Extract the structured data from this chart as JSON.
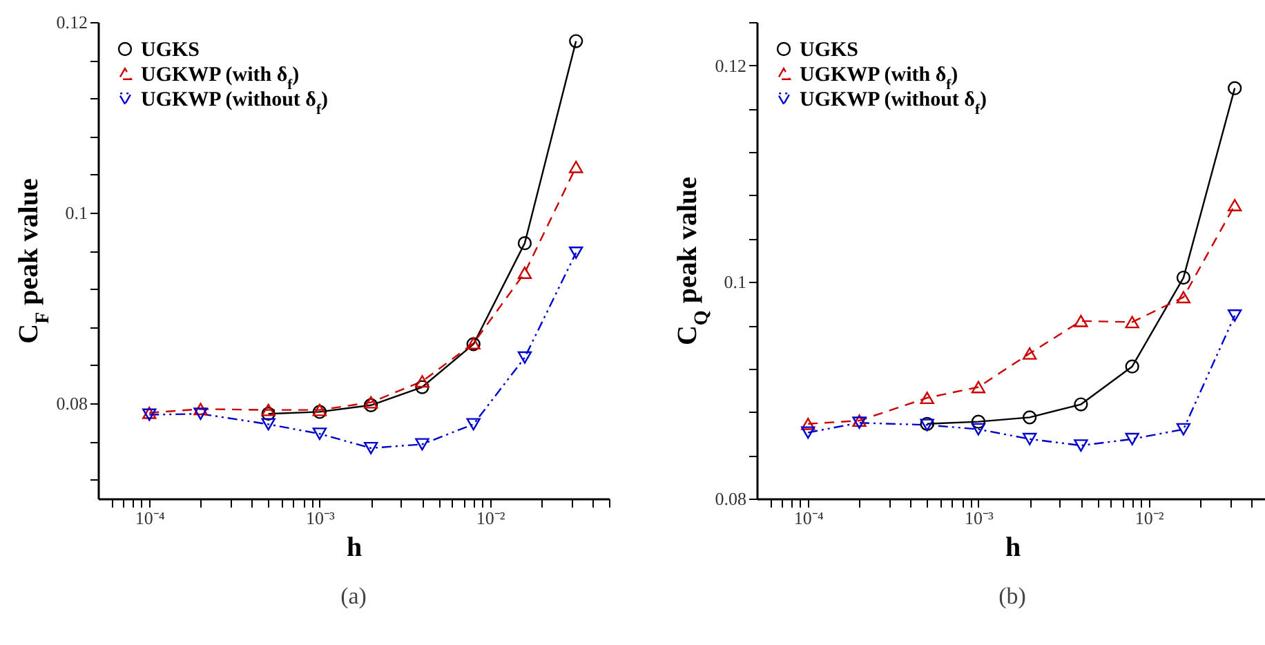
{
  "chart_data": [
    {
      "type": "line",
      "xlabel": "h",
      "ylabel": "C$_{F}$ peak value",
      "annotations": [
        "(a)"
      ],
      "log": "x",
      "grid": false,
      "legend": "top left",
      "x": [
        0.0001,
        0.0002,
        0.0005,
        0.001,
        0.002,
        0.004,
        0.008,
        0.016,
        0.032
      ],
      "xlim": [
        5e-05,
        0.05
      ],
      "xticks": [
        {
          "value": 6e-05,
          "label": null
        },
        {
          "value": 7e-05,
          "label": null
        },
        {
          "value": 8e-05,
          "label": null
        },
        {
          "value": 9e-05,
          "label": null
        },
        {
          "value": 0.0001,
          "label": "10⁻⁴"
        },
        {
          "value": 0.0002,
          "label": null
        },
        {
          "value": 0.0003,
          "label": null
        },
        {
          "value": 0.0004,
          "label": null
        },
        {
          "value": 0.0005,
          "label": null
        },
        {
          "value": 0.0006,
          "label": null
        },
        {
          "value": 0.0007,
          "label": null
        },
        {
          "value": 0.0008,
          "label": null
        },
        {
          "value": 0.0009,
          "label": null
        },
        {
          "value": 0.001,
          "label": "10⁻³"
        },
        {
          "value": 0.002,
          "label": null
        },
        {
          "value": 0.003,
          "label": null
        },
        {
          "value": 0.004,
          "label": null
        },
        {
          "value": 0.005,
          "label": null
        },
        {
          "value": 0.006,
          "label": null
        },
        {
          "value": 0.007,
          "label": null
        },
        {
          "value": 0.008,
          "label": null
        },
        {
          "value": 0.009,
          "label": null
        },
        {
          "value": 0.01,
          "label": "10⁻²"
        },
        {
          "value": 0.02,
          "label": null
        },
        {
          "value": 0.03,
          "label": null
        },
        {
          "value": 0.04,
          "label": null
        },
        {
          "value": 0.05,
          "label": null
        }
      ],
      "ylim": [
        0.07,
        0.12
      ],
      "yticks": [
        {
          "value": 0.072,
          "label": null
        },
        {
          "value": 0.076,
          "label": null
        },
        0.08,
        {
          "value": 0.084,
          "label": null
        },
        {
          "value": 0.088,
          "label": null
        },
        {
          "value": 0.092,
          "label": null
        },
        {
          "value": 0.096,
          "label": null
        },
        0.1,
        {
          "value": 0.104,
          "label": null
        },
        {
          "value": 0.108,
          "label": null
        },
        {
          "value": 0.112,
          "label": null
        },
        {
          "value": 0.116,
          "label": null
        },
        0.12
      ],
      "series": [
        {
          "name": "UGKS",
          "color": "#000000",
          "marker": "circle",
          "line_style": "solid",
          "values": [
            null,
            null,
            0.0789,
            0.0791,
            0.0798,
            0.0817,
            0.0862,
            0.0968,
            0.118
          ]
        },
        {
          "name": "UGKWP (with δ$_{f}$)",
          "color": "#cc0000",
          "marker": "triangle",
          "line_style": "dashed",
          "values": [
            0.079,
            0.0794,
            0.0793,
            0.0793,
            0.0801,
            0.0823,
            0.0863,
            0.0937,
            0.1048
          ]
        },
        {
          "name": "UGKWP (without δ$_{f}$)",
          "color": "#0000cc",
          "marker": "triangle-down",
          "line_style": "dashdot",
          "values": [
            0.0788,
            0.0789,
            0.0778,
            0.0768,
            0.0753,
            0.0757,
            0.0778,
            0.0848,
            0.0958
          ]
        }
      ]
    },
    {
      "type": "line",
      "xlabel": "h",
      "ylabel": "C$_{Q}$ peak value",
      "annotations": [
        "(b)"
      ],
      "log": "x",
      "grid": false,
      "legend": "top left",
      "x": [
        0.0001,
        0.0002,
        0.0005,
        0.001,
        0.002,
        0.004,
        0.008,
        0.016,
        0.032
      ],
      "xlim": [
        5e-05,
        0.05
      ],
      "xticks": [
        {
          "value": 6e-05,
          "label": null
        },
        {
          "value": 7e-05,
          "label": null
        },
        {
          "value": 8e-05,
          "label": null
        },
        {
          "value": 9e-05,
          "label": null
        },
        {
          "value": 0.0001,
          "label": "10⁻⁴"
        },
        {
          "value": 0.0002,
          "label": null
        },
        {
          "value": 0.0003,
          "label": null
        },
        {
          "value": 0.0004,
          "label": null
        },
        {
          "value": 0.0005,
          "label": null
        },
        {
          "value": 0.0006,
          "label": null
        },
        {
          "value": 0.0007,
          "label": null
        },
        {
          "value": 0.0008,
          "label": null
        },
        {
          "value": 0.0009,
          "label": null
        },
        {
          "value": 0.001,
          "label": "10⁻³"
        },
        {
          "value": 0.002,
          "label": null
        },
        {
          "value": 0.003,
          "label": null
        },
        {
          "value": 0.004,
          "label": null
        },
        {
          "value": 0.005,
          "label": null
        },
        {
          "value": 0.006,
          "label": null
        },
        {
          "value": 0.007,
          "label": null
        },
        {
          "value": 0.008,
          "label": null
        },
        {
          "value": 0.009,
          "label": null
        },
        {
          "value": 0.01,
          "label": "10⁻²"
        },
        {
          "value": 0.02,
          "label": null
        },
        {
          "value": 0.03,
          "label": null
        },
        {
          "value": 0.04,
          "label": null
        },
        {
          "value": 0.05,
          "label": null
        }
      ],
      "ylim": [
        0.08,
        0.124
      ],
      "yticks": [
        0.08,
        {
          "value": 0.084,
          "label": null
        },
        {
          "value": 0.088,
          "label": null
        },
        {
          "value": 0.092,
          "label": null
        },
        {
          "value": 0.096,
          "label": null
        },
        0.1,
        {
          "value": 0.104,
          "label": null
        },
        {
          "value": 0.108,
          "label": null
        },
        {
          "value": 0.112,
          "label": null
        },
        {
          "value": 0.116,
          "label": null
        },
        0.12,
        {
          "value": 0.124,
          "label": null
        }
      ],
      "series": [
        {
          "name": "UGKS",
          "color": "#000000",
          "marker": "circle",
          "line_style": "solid",
          "values": [
            null,
            null,
            0.0869,
            0.0871,
            0.0875,
            0.0887,
            0.0922,
            0.1004,
            0.1179
          ]
        },
        {
          "name": "UGKWP (with δ$_{f}$)",
          "color": "#cc0000",
          "marker": "triangle",
          "line_style": "dashed",
          "values": [
            0.0869,
            0.0872,
            0.0893,
            0.0903,
            0.0934,
            0.0964,
            0.0963,
            0.0986,
            0.1071
          ]
        },
        {
          "name": "UGKWP (without δ$_{f}$)",
          "color": "#0000cc",
          "marker": "triangle-down",
          "line_style": "dashdot",
          "values": [
            0.0861,
            0.087,
            0.0868,
            0.0864,
            0.0855,
            0.0849,
            0.0855,
            0.0864,
            0.0969
          ]
        }
      ]
    }
  ]
}
